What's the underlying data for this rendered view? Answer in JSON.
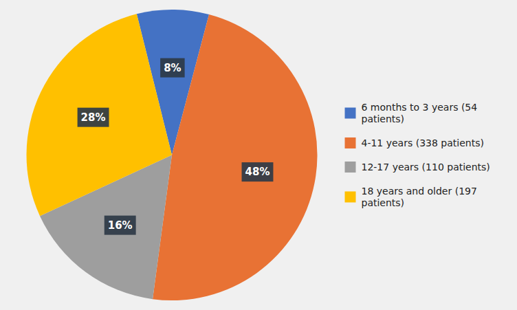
{
  "chart_data": {
    "type": "pie",
    "categories": [
      "6 months to 3 years (54\n  patients)",
      "4-11 years (338 patients)",
      "12-17 years (110 patients)",
      "18 years and older (197\n  patients)"
    ],
    "values": [
      8,
      48,
      16,
      28
    ],
    "value_labels": [
      "8%",
      "48%",
      "16%",
      "28%"
    ],
    "colors": [
      "#4472c4",
      "#e87234",
      "#9e9e9e",
      "#ffc000"
    ],
    "data_labels": true,
    "legend": "right"
  }
}
